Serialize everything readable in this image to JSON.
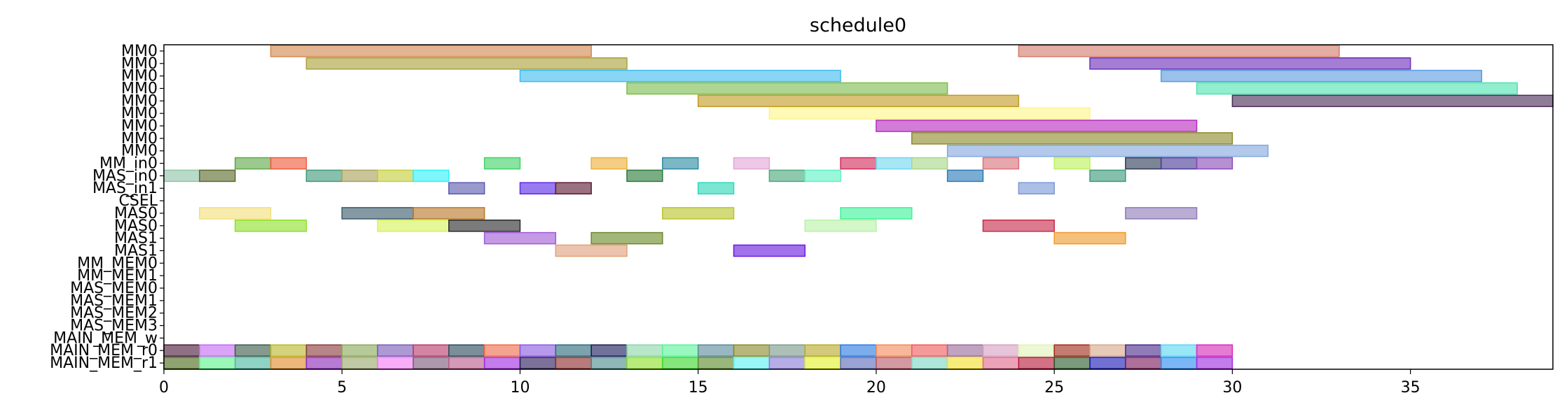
{
  "chart_data": {
    "type": "gantt",
    "title": "schedule0",
    "xlabel": "",
    "ylabel": "",
    "xlim": [
      0,
      39
    ],
    "xticks": [
      0,
      5,
      10,
      15,
      20,
      25,
      30,
      35
    ],
    "grid": false,
    "rows": [
      "MM0",
      "MM0",
      "MM0",
      "MM0",
      "MM0",
      "MM0",
      "MM0",
      "MM0",
      "MM0",
      "MM_in0",
      "MAS_in0",
      "MAS_in1",
      "CSEL",
      "MAS0",
      "MAS0",
      "MAS1",
      "MAS1",
      "MM_MEM0",
      "MM_MEM1",
      "MAS_MEM0",
      "MAS_MEM1",
      "MAS_MEM2",
      "MAS_MEM3",
      "MAIN_MEM_w",
      "MAIN_MEM_r0",
      "MAIN_MEM_r1"
    ],
    "bars": [
      {
        "row": 0,
        "start": 3,
        "end": 12,
        "color": "#d2884f"
      },
      {
        "row": 0,
        "start": 24,
        "end": 33,
        "color": "#d27a6a"
      },
      {
        "row": 1,
        "start": 4,
        "end": 13,
        "color": "#a9a23a"
      },
      {
        "row": 1,
        "start": 26,
        "end": 35,
        "color": "#6b2fb8"
      },
      {
        "row": 2,
        "start": 10,
        "end": 19,
        "color": "#3fbbef"
      },
      {
        "row": 2,
        "start": 28,
        "end": 37,
        "color": "#5b9be0"
      },
      {
        "row": 3,
        "start": 13,
        "end": 22,
        "color": "#7dbd4f"
      },
      {
        "row": 3,
        "start": 29,
        "end": 38,
        "color": "#4ee3b0"
      },
      {
        "row": 4,
        "start": 15,
        "end": 24,
        "color": "#c29b24"
      },
      {
        "row": 4,
        "start": 30,
        "end": 39,
        "color": "#4a2b57"
      },
      {
        "row": 5,
        "start": 17,
        "end": 26,
        "color": "#fdf58a"
      },
      {
        "row": 6,
        "start": 20,
        "end": 29,
        "color": "#b62cc0"
      },
      {
        "row": 7,
        "start": 21,
        "end": 30,
        "color": "#8e8a2c"
      },
      {
        "row": 8,
        "start": 22,
        "end": 31,
        "color": "#82a8de"
      },
      {
        "row": 9,
        "start": 2,
        "end": 3,
        "color": "#60a848"
      },
      {
        "row": 9,
        "start": 3,
        "end": 4,
        "color": "#ef5a3a"
      },
      {
        "row": 9,
        "start": 9,
        "end": 10,
        "color": "#3fd465"
      },
      {
        "row": 9,
        "start": 12,
        "end": 13,
        "color": "#ecb039"
      },
      {
        "row": 9,
        "start": 14,
        "end": 15,
        "color": "#2a8aa3"
      },
      {
        "row": 9,
        "start": 16,
        "end": 17,
        "color": "#e3a6d6"
      },
      {
        "row": 9,
        "start": 19,
        "end": 20,
        "color": "#d22c5a"
      },
      {
        "row": 9,
        "start": 20,
        "end": 21,
        "color": "#6fd6ef"
      },
      {
        "row": 9,
        "start": 21,
        "end": 22,
        "color": "#a8d68a"
      },
      {
        "row": 9,
        "start": 23,
        "end": 24,
        "color": "#d9727a"
      },
      {
        "row": 9,
        "start": 25,
        "end": 26,
        "color": "#bdf25a"
      },
      {
        "row": 9,
        "start": 27,
        "end": 28,
        "color": "#2b3a55"
      },
      {
        "row": 9,
        "start": 28,
        "end": 29,
        "color": "#4a3a96"
      },
      {
        "row": 9,
        "start": 29,
        "end": 30,
        "color": "#8a4ab8"
      },
      {
        "row": 10,
        "start": 0,
        "end": 1,
        "color": "#8fc4a8"
      },
      {
        "row": 10,
        "start": 1,
        "end": 2,
        "color": "#5a6a2a"
      },
      {
        "row": 10,
        "start": 4,
        "end": 5,
        "color": "#3e9a7a"
      },
      {
        "row": 10,
        "start": 5,
        "end": 6,
        "color": "#a8a25a"
      },
      {
        "row": 10,
        "start": 6,
        "end": 7,
        "color": "#c4cf3a"
      },
      {
        "row": 10,
        "start": 7,
        "end": 8,
        "color": "#2ef2fa"
      },
      {
        "row": 10,
        "start": 13,
        "end": 14,
        "color": "#2a7a3a"
      },
      {
        "row": 10,
        "start": 17,
        "end": 18,
        "color": "#4aa87a"
      },
      {
        "row": 10,
        "start": 18,
        "end": 19,
        "color": "#5ef2c4"
      },
      {
        "row": 10,
        "start": 22,
        "end": 23,
        "color": "#2a7ab8"
      },
      {
        "row": 10,
        "start": 26,
        "end": 27,
        "color": "#3a9a7a"
      },
      {
        "row": 11,
        "start": 8,
        "end": 9,
        "color": "#5a5ab0"
      },
      {
        "row": 11,
        "start": 10,
        "end": 11,
        "color": "#5a2ae8"
      },
      {
        "row": 11,
        "start": 11,
        "end": 12,
        "color": "#5a1a32"
      },
      {
        "row": 11,
        "start": 15,
        "end": 16,
        "color": "#2ad8b8"
      },
      {
        "row": 11,
        "start": 24,
        "end": 25,
        "color": "#7a98d6"
      },
      {
        "row": 13,
        "start": 1,
        "end": 3,
        "color": "#f2e07a"
      },
      {
        "row": 13,
        "start": 5,
        "end": 7,
        "color": "#3a5a6a"
      },
      {
        "row": 13,
        "start": 7,
        "end": 9,
        "color": "#b8782a"
      },
      {
        "row": 13,
        "start": 14,
        "end": 16,
        "color": "#b8c42a"
      },
      {
        "row": 13,
        "start": 19,
        "end": 21,
        "color": "#3ef29a"
      },
      {
        "row": 13,
        "start": 27,
        "end": 29,
        "color": "#8e7ab8"
      },
      {
        "row": 14,
        "start": 2,
        "end": 4,
        "color": "#8ee02a"
      },
      {
        "row": 14,
        "start": 6,
        "end": 8,
        "color": "#d6f25a"
      },
      {
        "row": 14,
        "start": 8,
        "end": 10,
        "color": "#2a2a2a"
      },
      {
        "row": 14,
        "start": 18,
        "end": 20,
        "color": "#b8f2a8"
      },
      {
        "row": 14,
        "start": 23,
        "end": 25,
        "color": "#c42a4a"
      },
      {
        "row": 15,
        "start": 9,
        "end": 11,
        "color": "#a05ad6"
      },
      {
        "row": 15,
        "start": 12,
        "end": 14,
        "color": "#6a8a2a"
      },
      {
        "row": 15,
        "start": 25,
        "end": 27,
        "color": "#ef9a2a"
      },
      {
        "row": 16,
        "start": 11,
        "end": 13,
        "color": "#e0a07a"
      },
      {
        "row": 16,
        "start": 16,
        "end": 18,
        "color": "#6a1ae0"
      },
      {
        "row": 24,
        "start": 0,
        "end": 1,
        "color": "#4a1a3a"
      },
      {
        "row": 24,
        "start": 1,
        "end": 2,
        "color": "#c46af2"
      },
      {
        "row": 24,
        "start": 2,
        "end": 3,
        "color": "#3a5a4a"
      },
      {
        "row": 24,
        "start": 3,
        "end": 4,
        "color": "#b8b82a"
      },
      {
        "row": 24,
        "start": 4,
        "end": 5,
        "color": "#8a3a3a"
      },
      {
        "row": 24,
        "start": 5,
        "end": 6,
        "color": "#8aa85a"
      },
      {
        "row": 24,
        "start": 6,
        "end": 7,
        "color": "#7a5ab8"
      },
      {
        "row": 24,
        "start": 7,
        "end": 8,
        "color": "#b83a6a"
      },
      {
        "row": 24,
        "start": 8,
        "end": 9,
        "color": "#2a4a5a"
      },
      {
        "row": 24,
        "start": 9,
        "end": 10,
        "color": "#ef6a4a"
      },
      {
        "row": 24,
        "start": 10,
        "end": 11,
        "color": "#8a5ae0"
      },
      {
        "row": 24,
        "start": 11,
        "end": 12,
        "color": "#2a6a7a"
      },
      {
        "row": 24,
        "start": 12,
        "end": 13,
        "color": "#1a1a5a"
      },
      {
        "row": 24,
        "start": 13,
        "end": 14,
        "color": "#8ad6a8"
      },
      {
        "row": 24,
        "start": 14,
        "end": 15,
        "color": "#5af29a"
      },
      {
        "row": 24,
        "start": 15,
        "end": 16,
        "color": "#5a8a9a"
      },
      {
        "row": 24,
        "start": 16,
        "end": 17,
        "color": "#8a8a2a"
      },
      {
        "row": 24,
        "start": 17,
        "end": 18,
        "color": "#7a9a8a"
      },
      {
        "row": 24,
        "start": 18,
        "end": 19,
        "color": "#b8a82a"
      },
      {
        "row": 24,
        "start": 19,
        "end": 20,
        "color": "#2a7ae0"
      },
      {
        "row": 24,
        "start": 20,
        "end": 21,
        "color": "#f28a5a"
      },
      {
        "row": 24,
        "start": 21,
        "end": 22,
        "color": "#ef5a5a"
      },
      {
        "row": 24,
        "start": 22,
        "end": 23,
        "color": "#9a6a9a"
      },
      {
        "row": 24,
        "start": 23,
        "end": 24,
        "color": "#d6a0c4"
      },
      {
        "row": 24,
        "start": 24,
        "end": 25,
        "color": "#e0f2b8"
      },
      {
        "row": 24,
        "start": 25,
        "end": 26,
        "color": "#a02a1a"
      },
      {
        "row": 24,
        "start": 26,
        "end": 27,
        "color": "#d6a88a"
      },
      {
        "row": 24,
        "start": 27,
        "end": 28,
        "color": "#4a2a8a"
      },
      {
        "row": 24,
        "start": 28,
        "end": 29,
        "color": "#5ad6f2"
      },
      {
        "row": 24,
        "start": 29,
        "end": 30,
        "color": "#d62ab8"
      },
      {
        "row": 25,
        "start": 0,
        "end": 1,
        "color": "#4a6a1a"
      },
      {
        "row": 25,
        "start": 1,
        "end": 2,
        "color": "#5af28a"
      },
      {
        "row": 25,
        "start": 2,
        "end": 3,
        "color": "#4ab8a0"
      },
      {
        "row": 25,
        "start": 3,
        "end": 4,
        "color": "#e08a2a"
      },
      {
        "row": 25,
        "start": 4,
        "end": 5,
        "color": "#8a2ab8"
      },
      {
        "row": 25,
        "start": 5,
        "end": 6,
        "color": "#9aa86a"
      },
      {
        "row": 25,
        "start": 6,
        "end": 7,
        "color": "#f27af2"
      },
      {
        "row": 25,
        "start": 7,
        "end": 8,
        "color": "#7a5a7a"
      },
      {
        "row": 25,
        "start": 8,
        "end": 9,
        "color": "#b85a8a"
      },
      {
        "row": 25,
        "start": 9,
        "end": 10,
        "color": "#a02ae0"
      },
      {
        "row": 25,
        "start": 10,
        "end": 11,
        "color": "#2a1a5a"
      },
      {
        "row": 25,
        "start": 11,
        "end": 12,
        "color": "#8a2a2a"
      },
      {
        "row": 25,
        "start": 12,
        "end": 13,
        "color": "#4a8a8a"
      },
      {
        "row": 25,
        "start": 13,
        "end": 14,
        "color": "#8ae02a"
      },
      {
        "row": 25,
        "start": 14,
        "end": 15,
        "color": "#3ad62a"
      },
      {
        "row": 25,
        "start": 15,
        "end": 16,
        "color": "#5a8a2a"
      },
      {
        "row": 25,
        "start": 16,
        "end": 17,
        "color": "#5af2f2"
      },
      {
        "row": 25,
        "start": 17,
        "end": 18,
        "color": "#8a7ad6"
      },
      {
        "row": 25,
        "start": 18,
        "end": 19,
        "color": "#e0f22a"
      },
      {
        "row": 25,
        "start": 19,
        "end": 20,
        "color": "#5a6ab8"
      },
      {
        "row": 25,
        "start": 20,
        "end": 21,
        "color": "#b85a6a"
      },
      {
        "row": 25,
        "start": 21,
        "end": 22,
        "color": "#7ad6c4"
      },
      {
        "row": 25,
        "start": 22,
        "end": 23,
        "color": "#f2e02a"
      },
      {
        "row": 25,
        "start": 23,
        "end": 24,
        "color": "#e06a8a"
      },
      {
        "row": 25,
        "start": 24,
        "end": 25,
        "color": "#b81a3a"
      },
      {
        "row": 25,
        "start": 25,
        "end": 26,
        "color": "#2a5a2a"
      },
      {
        "row": 25,
        "start": 26,
        "end": 27,
        "color": "#1a1ab8"
      },
      {
        "row": 25,
        "start": 27,
        "end": 28,
        "color": "#7a1a5a"
      },
      {
        "row": 25,
        "start": 28,
        "end": 29,
        "color": "#2a8af2"
      },
      {
        "row": 25,
        "start": 29,
        "end": 30,
        "color": "#a02ae0"
      }
    ]
  }
}
